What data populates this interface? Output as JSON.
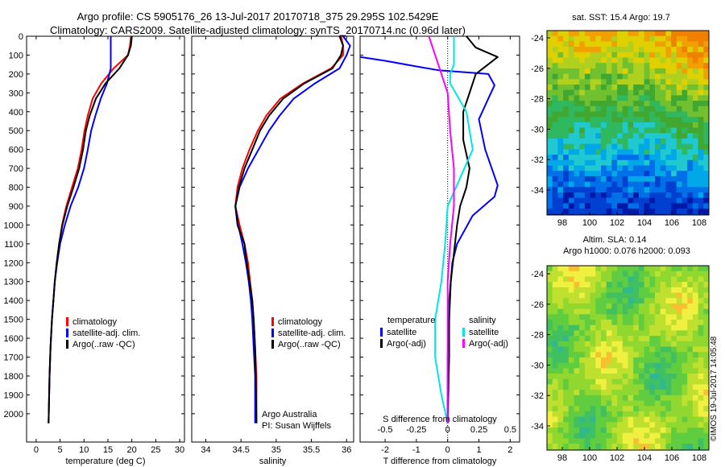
{
  "header": {
    "line1": "Argo profile: CS 5905176_26 13-Jul-2017 20170718_375 29.295S 102.5429E",
    "line2": "Climatology: CARS2009. Satellite-adjusted climatology: synTS_20170714.nc (0.96d later)"
  },
  "colors": {
    "climatology": "#ff0000",
    "satellite": "#0000ff",
    "argo": "#000000",
    "sal_sat": "#00e5e5",
    "sal_argo": "#ff00ff"
  },
  "credits": {
    "institution": "Argo Australia",
    "pi": "PI: Susan Wijffels",
    "imos": "©IMOS 19-Jul-2017 14:05:48"
  },
  "chart_data": [
    {
      "type": "line",
      "panel": "temperature",
      "xlabel": "temperature (deg C)",
      "ylabel": "",
      "xlim": [
        -2,
        31
      ],
      "ylim": [
        2150,
        0
      ],
      "y_reversed": true,
      "xticks": [
        0,
        5,
        10,
        15,
        20,
        25,
        30
      ],
      "yticks": [
        0,
        100,
        200,
        300,
        400,
        500,
        600,
        700,
        800,
        900,
        1000,
        1100,
        1200,
        1300,
        1400,
        1500,
        1600,
        1700,
        1800,
        1900,
        2000
      ],
      "legend": [
        "climatology",
        "satellite-adj. clim.",
        "Argo(..raw -QC)"
      ],
      "series": [
        {
          "name": "climatology",
          "color": "#ff0000",
          "x": [
            19.8,
            19.6,
            19.2,
            16.2,
            13.6,
            11.8,
            10.8,
            10.1,
            9.5,
            8.7,
            7.5,
            6.3,
            5.4,
            4.8,
            4.3,
            3.9,
            3.6,
            3.3,
            3.0,
            2.8,
            2.6
          ],
          "y": [
            0,
            50,
            100,
            170,
            250,
            330,
            420,
            500,
            600,
            700,
            800,
            900,
            1000,
            1100,
            1200,
            1300,
            1400,
            1500,
            1650,
            1800,
            2050
          ]
        },
        {
          "name": "satellite-adj. clim.",
          "color": "#0000ff",
          "x": [
            15.6,
            15.6,
            15.6,
            15.6,
            14.8,
            13.5,
            12.4,
            11.5,
            10.8,
            10.0,
            8.8,
            7.2,
            6.0,
            5.0,
            4.4,
            3.9,
            3.6,
            3.3,
            3.0,
            2.8,
            2.6
          ],
          "y": [
            0,
            50,
            100,
            170,
            250,
            330,
            420,
            500,
            600,
            700,
            800,
            900,
            1000,
            1100,
            1200,
            1300,
            1400,
            1500,
            1650,
            1800,
            2050
          ]
        },
        {
          "name": "Argo(..raw -QC)",
          "color": "#000000",
          "x": [
            20.0,
            19.8,
            19.2,
            17.4,
            14.5,
            12.5,
            11.2,
            10.4,
            9.8,
            9.0,
            7.8,
            6.5,
            5.5,
            4.8,
            4.3,
            3.9,
            3.6,
            3.3,
            3.0,
            2.8,
            2.6
          ],
          "y": [
            0,
            50,
            100,
            170,
            250,
            330,
            420,
            500,
            600,
            700,
            800,
            900,
            1000,
            1100,
            1200,
            1300,
            1400,
            1500,
            1650,
            1800,
            2050
          ]
        }
      ]
    },
    {
      "type": "line",
      "panel": "salinity",
      "xlabel": "salinity",
      "ylabel": "",
      "xlim": [
        33.8,
        36.1
      ],
      "ylim": [
        2150,
        0
      ],
      "y_reversed": true,
      "xticks": [
        34,
        34.5,
        35,
        35.5,
        36
      ],
      "legend": [
        "climatology",
        "satellite-adj. clim.",
        "Argo(..raw -QC)"
      ],
      "series": [
        {
          "name": "climatology",
          "color": "#ff0000",
          "x": [
            35.92,
            35.95,
            35.95,
            35.78,
            35.38,
            35.06,
            34.86,
            34.74,
            34.62,
            34.52,
            34.45,
            34.42,
            34.48,
            34.55,
            34.6,
            34.63,
            34.66,
            34.68,
            34.7,
            34.72,
            34.72
          ],
          "y": [
            0,
            50,
            100,
            170,
            250,
            330,
            420,
            500,
            600,
            700,
            800,
            900,
            1000,
            1100,
            1200,
            1300,
            1400,
            1500,
            1650,
            1800,
            2050
          ]
        },
        {
          "name": "satellite-adj. clim.",
          "color": "#0000ff",
          "x": [
            35.95,
            36.05,
            36.0,
            35.9,
            35.55,
            35.25,
            35.05,
            34.9,
            34.75,
            34.6,
            34.48,
            34.42,
            34.46,
            34.52,
            34.57,
            34.61,
            34.64,
            34.66,
            34.68,
            34.7,
            34.7
          ],
          "y": [
            0,
            50,
            100,
            170,
            250,
            330,
            420,
            500,
            600,
            700,
            800,
            900,
            1000,
            1100,
            1200,
            1300,
            1400,
            1500,
            1650,
            1800,
            2050
          ]
        },
        {
          "name": "Argo(..raw -QC)",
          "color": "#000000",
          "x": [
            35.9,
            35.95,
            35.92,
            35.8,
            35.4,
            35.1,
            34.9,
            34.77,
            34.66,
            34.55,
            34.47,
            34.42,
            34.45,
            34.55,
            34.58,
            34.62,
            34.66,
            34.68,
            34.7,
            34.71,
            34.72
          ],
          "y": [
            0,
            50,
            100,
            170,
            250,
            330,
            420,
            500,
            600,
            700,
            800,
            900,
            1000,
            1100,
            1200,
            1300,
            1400,
            1500,
            1650,
            1800,
            2050
          ]
        }
      ]
    },
    {
      "type": "line",
      "panel": "difference",
      "xlabel": "T difference from climatology",
      "xlabel_top": "S difference from climatology",
      "xlim": [
        -2.8,
        2.3
      ],
      "ylim": [
        2150,
        0
      ],
      "y_reversed": true,
      "xticks": [
        -2,
        -1,
        0,
        1,
        2
      ],
      "xticks_top": [
        "-0.5",
        "-0.25",
        "0",
        "0.25",
        "0.5"
      ],
      "legend_titles": [
        "temperature",
        "salinity"
      ],
      "legend": [
        "satellite",
        "Argo(-adj)",
        "satellite",
        "Argo(-adj)"
      ],
      "series": [
        {
          "name": "temperature satellite",
          "color": "#0000ff",
          "x": [
            -2.8,
            -2.0,
            -1.0,
            -0.3,
            1.3,
            1.5,
            1.3,
            1.0,
            1.2,
            1.6,
            1.5,
            0.8,
            0.3,
            0.15,
            0.1,
            0.05,
            0.05,
            0.0,
            0.0,
            0.0
          ],
          "y": [
            110,
            130,
            160,
            180,
            200,
            260,
            330,
            440,
            600,
            790,
            850,
            950,
            1100,
            1200,
            1300,
            1400,
            1500,
            1700,
            1900,
            2050
          ]
        },
        {
          "name": "temperature Argo(-adj)",
          "color": "#000000",
          "x": [
            0.6,
            0.9,
            1.6,
            0.9,
            0.7,
            0.5,
            0.5,
            0.7,
            0.6,
            0.4,
            0.3,
            0.2,
            0.1,
            0.05,
            0.05,
            0.0
          ],
          "y": [
            0,
            60,
            110,
            200,
            300,
            400,
            550,
            700,
            800,
            900,
            1000,
            1150,
            1300,
            1500,
            1700,
            2050
          ]
        },
        {
          "name": "salinity satellite",
          "color": "#00e5e5",
          "x": [
            0.05,
            0.05,
            0.02,
            0.02,
            0.15,
            0.2,
            0.0,
            -0.02,
            -0.05,
            -0.1,
            -0.1,
            -0.05,
            0.0
          ],
          "y": [
            0,
            150,
            200,
            250,
            400,
            600,
            900,
            1100,
            1300,
            1500,
            1700,
            1900,
            2050
          ]
        },
        {
          "name": "salinity Argo(-adj)",
          "color": "#ff00ff",
          "x": [
            -0.15,
            -0.1,
            0.0,
            0.02,
            0.05,
            0.05,
            0.02,
            0.0,
            0.0,
            0.0
          ],
          "y": [
            0,
            100,
            300,
            500,
            700,
            900,
            1100,
            1300,
            1600,
            2050
          ]
        }
      ]
    },
    {
      "type": "heatmap",
      "panel": "sst_map",
      "title": "sat. SST: 15.4  Argo: 19.7",
      "xticks": [
        98,
        100,
        102,
        104,
        106,
        108
      ],
      "yticks": [
        -24,
        -26,
        -28,
        -30,
        -32,
        -34
      ]
    },
    {
      "type": "heatmap",
      "panel": "sla_map",
      "title": "Altim. SLA: 0.14",
      "subtitle": "Argo h1000: 0.076 h2000: 0.093",
      "xticks": [
        98,
        100,
        102,
        104,
        106,
        108
      ],
      "yticks": [
        -24,
        -26,
        -28,
        -30,
        -32,
        -34
      ]
    }
  ]
}
